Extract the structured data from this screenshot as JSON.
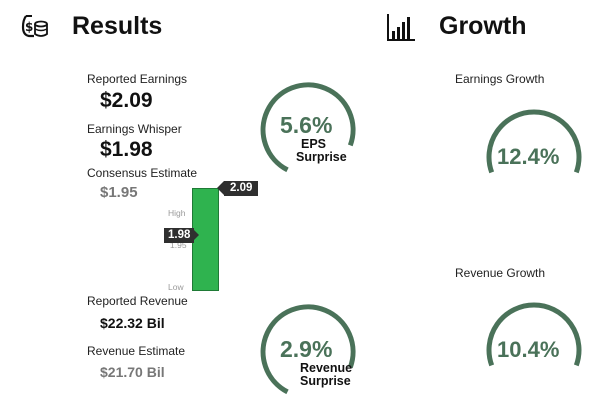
{
  "results": {
    "title": "Results",
    "icon": "money-bag-coins-icon",
    "reported_earnings_label": "Reported Earnings",
    "reported_earnings_value": "$2.09",
    "earnings_whisper_label": "Earnings Whisper",
    "earnings_whisper_value": "$1.98",
    "consensus_label": "Consensus Estimate",
    "consensus_value": "$1.95",
    "reported_revenue_label": "Reported Revenue",
    "reported_revenue_value": "$22.32 Bil",
    "revenue_estimate_label": "Revenue Estimate",
    "revenue_estimate_value": "$21.70 Bil"
  },
  "range_chart": {
    "high_label": "High",
    "mid_label": "1.95",
    "low_label": "Low",
    "actual_flag": "2.09",
    "whisper_flag": "1.98",
    "bar_color": "#2fb34f"
  },
  "eps_surprise": {
    "value": "5.6%",
    "label_line1": "EPS",
    "label_line2": "Surprise"
  },
  "revenue_surprise": {
    "value": "2.9%",
    "label_line1": "Revenue",
    "label_line2": "Surprise"
  },
  "growth": {
    "title": "Growth",
    "icon": "bar-chart-icon",
    "earnings_label": "Earnings Growth",
    "earnings_value": "12.4%",
    "revenue_label": "Revenue Growth",
    "revenue_value": "10.4%"
  },
  "colors": {
    "accent": "#4a7259",
    "text": "#111111"
  }
}
